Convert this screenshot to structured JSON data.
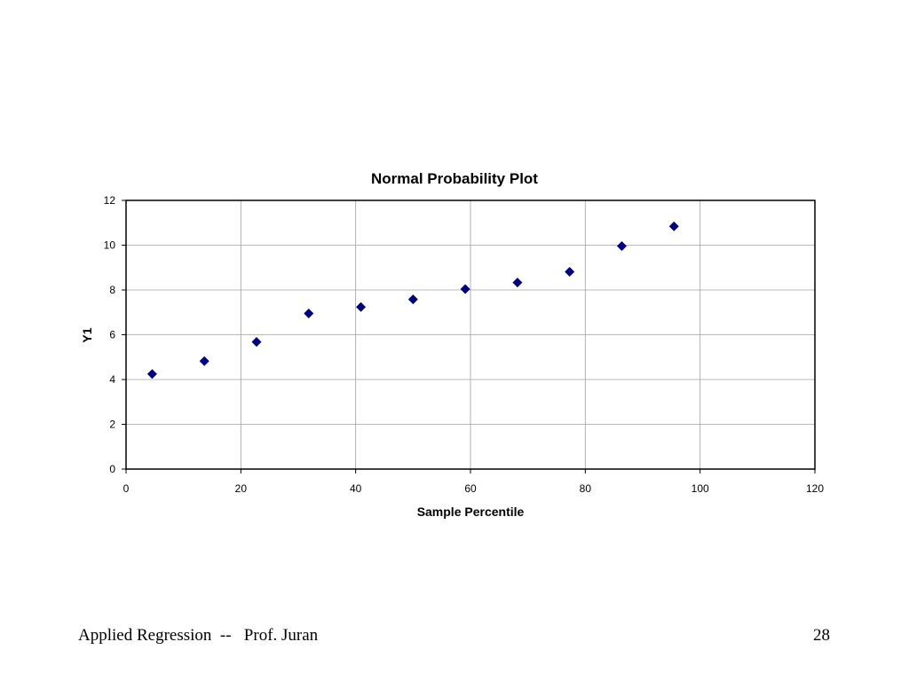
{
  "slide": {
    "footer_text": "Applied Regression  --   Prof. Juran",
    "page_number": "28"
  },
  "colors": {
    "marker": "#000080",
    "gridline": "#a0a0a0",
    "plot_border": "#000000",
    "background": "#ffffff"
  },
  "chart_data": {
    "type": "scatter",
    "title": "Normal Probability Plot",
    "xlabel": "Sample Percentile",
    "ylabel": "Y1",
    "xlim": [
      0,
      120
    ],
    "ylim": [
      0,
      12
    ],
    "x_ticks": [
      0,
      20,
      40,
      60,
      80,
      100,
      120
    ],
    "y_ticks": [
      0,
      2,
      4,
      6,
      8,
      10,
      12
    ],
    "grid": true,
    "legend": "none",
    "marker": "diamond",
    "series": [
      {
        "points": [
          {
            "x": 4.55,
            "y": 4.25
          },
          {
            "x": 13.64,
            "y": 4.82
          },
          {
            "x": 22.73,
            "y": 5.68
          },
          {
            "x": 31.82,
            "y": 6.95
          },
          {
            "x": 40.91,
            "y": 7.24
          },
          {
            "x": 50.0,
            "y": 7.58
          },
          {
            "x": 59.09,
            "y": 8.04
          },
          {
            "x": 68.18,
            "y": 8.33
          },
          {
            "x": 77.27,
            "y": 8.81
          },
          {
            "x": 86.36,
            "y": 9.96
          },
          {
            "x": 95.45,
            "y": 10.84
          }
        ]
      }
    ]
  }
}
